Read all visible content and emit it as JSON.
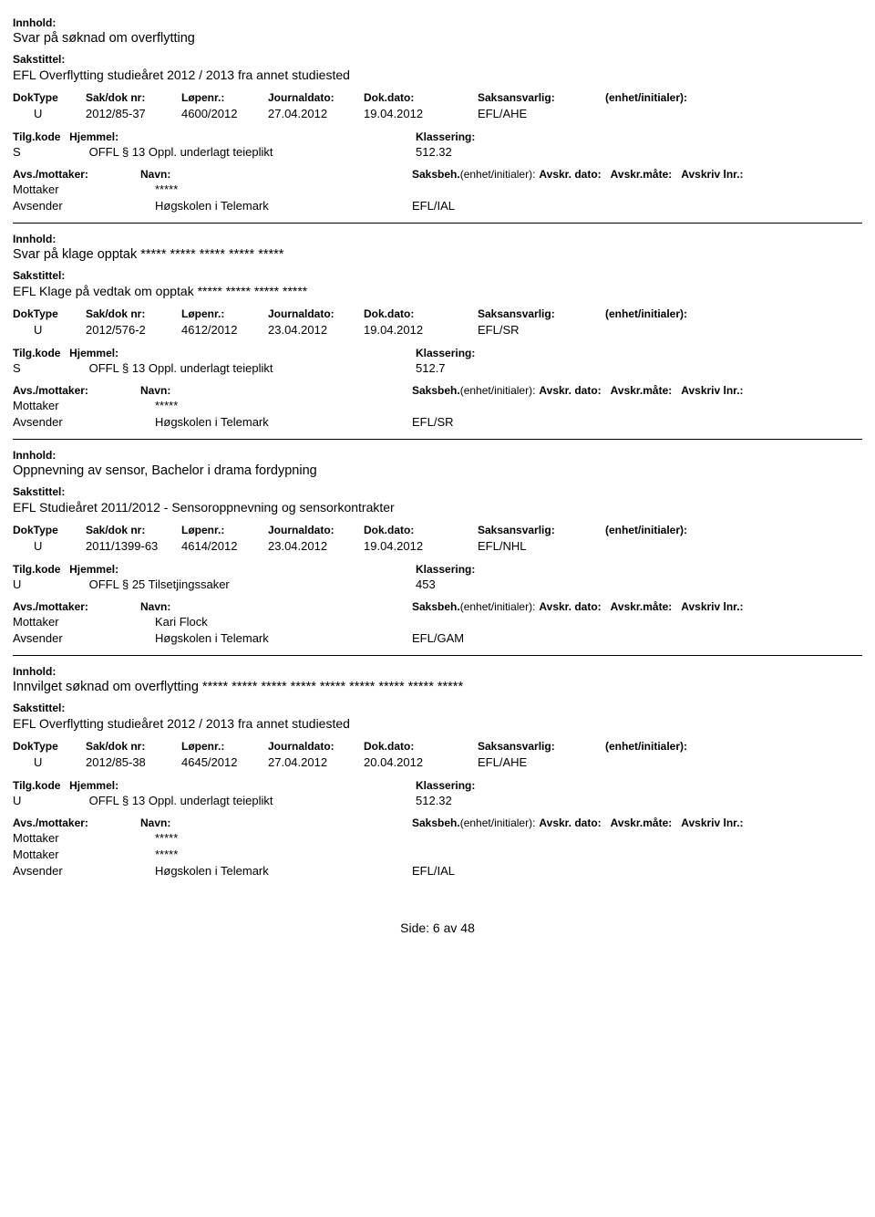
{
  "labels": {
    "innhold": "Innhold:",
    "sakstittel": "Sakstittel:",
    "doktype": "DokType",
    "sakdok": "Sak/dok nr:",
    "lopenr": "Løpenr.:",
    "journaldato": "Journaldato:",
    "dokdato": "Dok.dato:",
    "saksansvarlig": "Saksansvarlig:",
    "enhet": "(enhet/initialer):",
    "tilgkode": "Tilg.kode",
    "hjemmel": "Hjemmel:",
    "klassering": "Klassering:",
    "avsmottaker": "Avs./mottaker:",
    "navn": "Navn:",
    "saksbeh": "Saksbeh.",
    "saksbeh_en": "(enhet/initialer):",
    "avskr_dato": "Avskr. dato:",
    "avskr_mate": "Avskr.måte:",
    "avskriv_lnr": "Avskriv lnr.:"
  },
  "records": [
    {
      "innhold": "Svar på søknad om overflytting",
      "sakstittel": "EFL Overflytting studieåret 2012 / 2013 fra annet studiested",
      "doktype": "U",
      "sakdok": "2012/85-37",
      "lopenr": "4600/2012",
      "journaldato": "27.04.2012",
      "dokdato": "19.04.2012",
      "saksansvarlig": "EFL/AHE",
      "tilgkode": "S",
      "hjemmel": "OFFL § 13 Oppl. underlagt teieplikt",
      "klassering": "512.32",
      "parties": [
        {
          "role": "Mottaker",
          "navn": "*****",
          "ref": ""
        },
        {
          "role": "Avsender",
          "navn": "Høgskolen i Telemark",
          "ref": "EFL/IAL"
        }
      ]
    },
    {
      "innhold": "Svar på klage opptak ***** ***** ***** ***** *****",
      "sakstittel": "EFL Klage på vedtak om opptak ***** ***** ***** *****",
      "doktype": "U",
      "sakdok": "2012/576-2",
      "lopenr": "4612/2012",
      "journaldato": "23.04.2012",
      "dokdato": "19.04.2012",
      "saksansvarlig": "EFL/SR",
      "tilgkode": "S",
      "hjemmel": "OFFL § 13 Oppl. underlagt teieplikt",
      "klassering": "512.7",
      "parties": [
        {
          "role": "Mottaker",
          "navn": "*****",
          "ref": ""
        },
        {
          "role": "Avsender",
          "navn": "Høgskolen i Telemark",
          "ref": "EFL/SR"
        }
      ]
    },
    {
      "innhold": "Oppnevning av sensor, Bachelor i drama fordypning",
      "sakstittel": "EFL Studieåret 2011/2012 - Sensoroppnevning og sensorkontrakter",
      "doktype": "U",
      "sakdok": "2011/1399-63",
      "lopenr": "4614/2012",
      "journaldato": "23.04.2012",
      "dokdato": "19.04.2012",
      "saksansvarlig": "EFL/NHL",
      "tilgkode": "U",
      "hjemmel": "OFFL § 25 Tilsetjingssaker",
      "klassering": "453",
      "parties": [
        {
          "role": "Mottaker",
          "navn": "Kari Flock",
          "ref": ""
        },
        {
          "role": "Avsender",
          "navn": "Høgskolen i Telemark",
          "ref": "EFL/GAM"
        }
      ]
    },
    {
      "innhold": "Innvilget søknad om overflytting ***** ***** ***** ***** ***** ***** ***** ***** *****",
      "sakstittel": "EFL Overflytting studieåret 2012 / 2013 fra annet studiested",
      "doktype": "U",
      "sakdok": "2012/85-38",
      "lopenr": "4645/2012",
      "journaldato": "27.04.2012",
      "dokdato": "20.04.2012",
      "saksansvarlig": "EFL/AHE",
      "tilgkode": "U",
      "hjemmel": "OFFL § 13 Oppl. underlagt teieplikt",
      "klassering": "512.32",
      "parties": [
        {
          "role": "Mottaker",
          "navn": "*****",
          "ref": ""
        },
        {
          "role": "Mottaker",
          "navn": "*****",
          "ref": ""
        },
        {
          "role": "Avsender",
          "navn": "Høgskolen i Telemark",
          "ref": "EFL/IAL"
        }
      ]
    }
  ],
  "footer": "Side: 6 av 48"
}
